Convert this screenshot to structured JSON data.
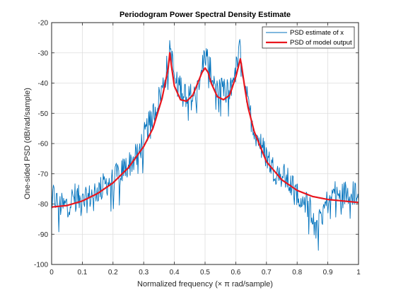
{
  "chart_data": {
    "type": "line",
    "title": "Periodogram Power Spectral Density Estimate",
    "xlabel": "Normalized frequency (× π rad/sample)",
    "ylabel": "One-sided PSD (dB/rad/sample)",
    "xlim": [
      0,
      1
    ],
    "ylim": [
      -100,
      -20
    ],
    "xticks": [
      "0",
      "0.1",
      "0.2",
      "0.3",
      "0.4",
      "0.5",
      "0.6",
      "0.7",
      "0.8",
      "0.9",
      "1"
    ],
    "yticks": [
      "-100",
      "-90",
      "-80",
      "-70",
      "-60",
      "-50",
      "-40",
      "-30",
      "-20"
    ],
    "grid": true,
    "legend_position": "top-right",
    "series": [
      {
        "name": "PSD estimate of x",
        "color": "#0072BD",
        "style": "noisy",
        "x": [
          0.0,
          0.02,
          0.04,
          0.06,
          0.08,
          0.1,
          0.12,
          0.14,
          0.16,
          0.18,
          0.2,
          0.22,
          0.24,
          0.26,
          0.28,
          0.3,
          0.32,
          0.34,
          0.36,
          0.37,
          0.38,
          0.385,
          0.39,
          0.4,
          0.42,
          0.44,
          0.46,
          0.48,
          0.49,
          0.5,
          0.51,
          0.52,
          0.54,
          0.56,
          0.58,
          0.6,
          0.61,
          0.615,
          0.62,
          0.63,
          0.64,
          0.66,
          0.68,
          0.7,
          0.72,
          0.74,
          0.76,
          0.78,
          0.8,
          0.82,
          0.84,
          0.86,
          0.88,
          0.9,
          0.92,
          0.94,
          0.96,
          0.98,
          1.0
        ],
        "values": [
          -76,
          -80,
          -81,
          -79,
          -77,
          -80,
          -78,
          -76,
          -75,
          -73,
          -72,
          -70,
          -68,
          -66,
          -64,
          -58,
          -53,
          -48,
          -42,
          -38,
          -32,
          -27,
          -31,
          -38,
          -41,
          -43,
          -45,
          -42,
          -35,
          -30,
          -33,
          -37,
          -41,
          -43,
          -42,
          -36,
          -31,
          -28,
          -33,
          -40,
          -48,
          -55,
          -60,
          -64,
          -68,
          -70,
          -71,
          -74,
          -76,
          -78,
          -81,
          -85,
          -83,
          -79,
          -76,
          -78,
          -76,
          -77,
          -75
        ]
      },
      {
        "name": "PSD of model output",
        "color": "#E8161E",
        "style": "smooth",
        "x": [
          0.0,
          0.05,
          0.1,
          0.15,
          0.2,
          0.25,
          0.3,
          0.33,
          0.36,
          0.37,
          0.38,
          0.385,
          0.39,
          0.4,
          0.42,
          0.44,
          0.46,
          0.48,
          0.49,
          0.5,
          0.51,
          0.52,
          0.54,
          0.56,
          0.58,
          0.6,
          0.61,
          0.615,
          0.62,
          0.63,
          0.64,
          0.66,
          0.7,
          0.75,
          0.8,
          0.85,
          0.9,
          0.95,
          1.0
        ],
        "values": [
          -81,
          -80.5,
          -79,
          -76.5,
          -73,
          -68,
          -61,
          -55,
          -45,
          -40,
          -35,
          -30,
          -34,
          -41,
          -45.5,
          -46,
          -44,
          -39,
          -36.5,
          -35,
          -36.5,
          -40,
          -44.5,
          -45.5,
          -44,
          -38,
          -34,
          -32,
          -35,
          -42,
          -48,
          -56,
          -66,
          -72,
          -75.5,
          -77.5,
          -78.5,
          -79,
          -79.5
        ]
      }
    ]
  }
}
